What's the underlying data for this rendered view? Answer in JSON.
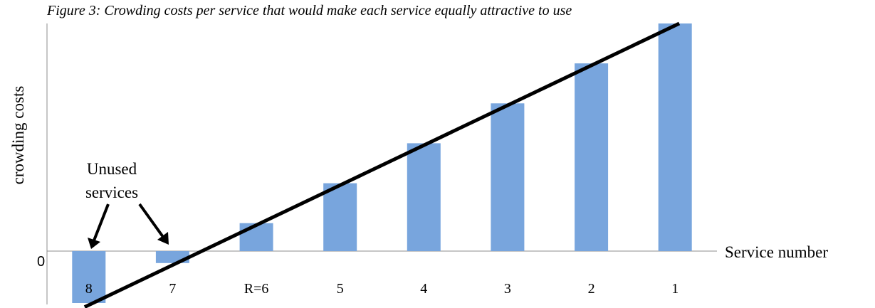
{
  "chart_data": {
    "type": "bar",
    "title": "Figure 3: Crowding costs per service that would make each service equally attractive to use",
    "xlabel": "Service number",
    "ylabel": "crowding costs",
    "y_zero_label": "0",
    "categories": [
      "8",
      "7",
      "R=6",
      "5",
      "4",
      "3",
      "2",
      "1"
    ],
    "values": [
      -1.3,
      -0.3,
      0.7,
      1.7,
      2.7,
      3.7,
      4.7,
      5.7
    ],
    "ylim": [
      -1.4,
      5.7
    ],
    "grid": false,
    "legend": "none",
    "bar_color": "#78a5dd",
    "trend_line": {
      "color": "#000000",
      "x_range": [
        0.95,
        8.05
      ],
      "y_range": [
        -1.4,
        5.7
      ]
    },
    "annotations": [
      {
        "text": [
          "Unused",
          "services"
        ],
        "points_to": [
          "8",
          "7"
        ]
      }
    ]
  }
}
